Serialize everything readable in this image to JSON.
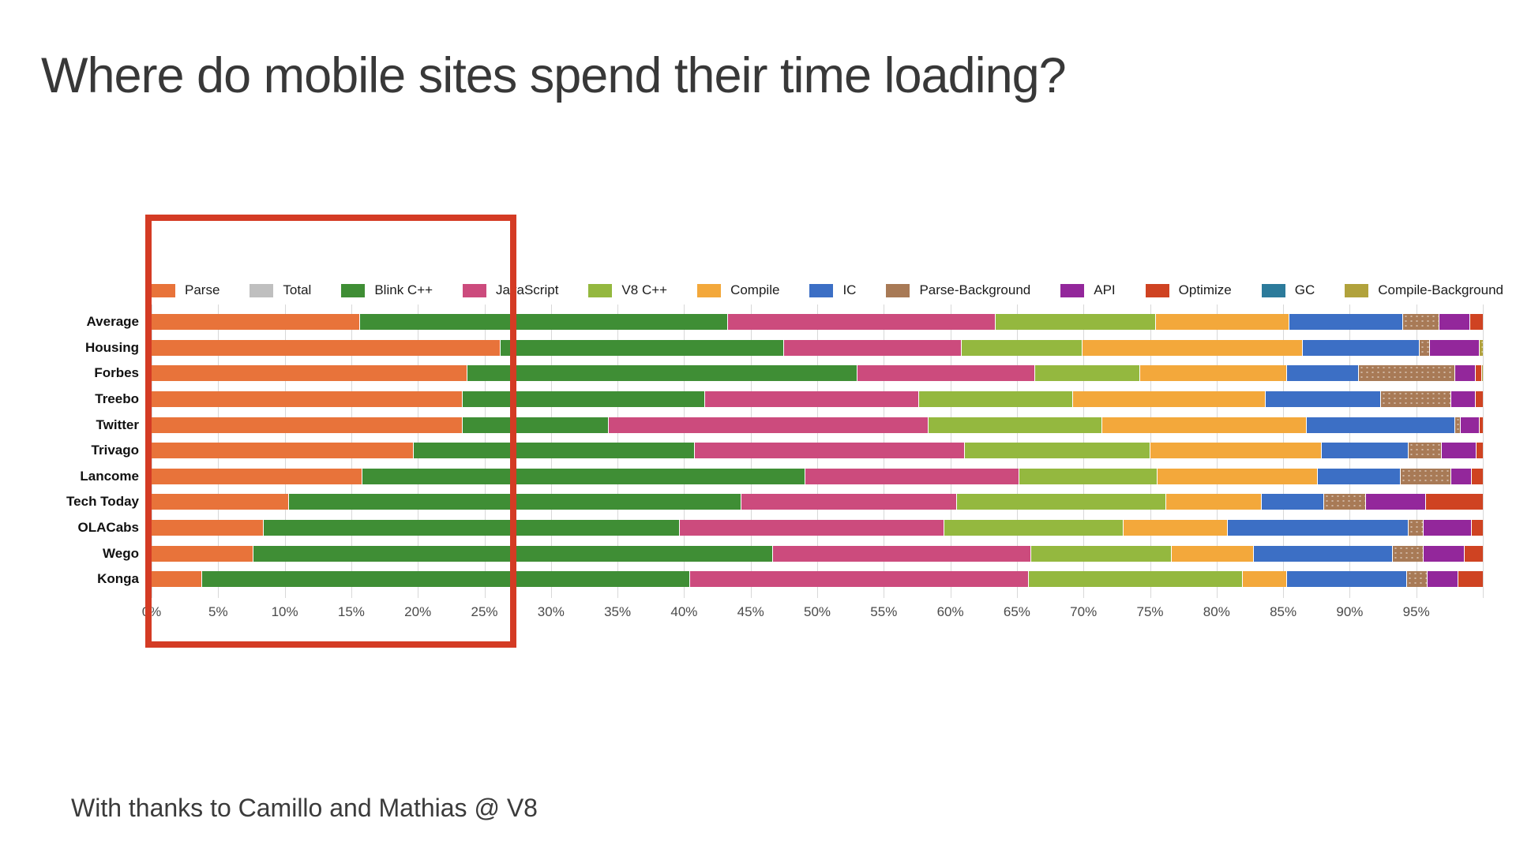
{
  "page": {
    "title": "Where do mobile sites spend their time loading?",
    "footer": "With thanks to Camillo and Mathias @ V8"
  },
  "chart_data": {
    "type": "bar",
    "orientation": "horizontal-stacked",
    "unit": "percent",
    "title": "Where do mobile sites spend their time loading?",
    "xlabel": "",
    "ylabel": "",
    "xlim": [
      0,
      100
    ],
    "tick_step_pct": 5,
    "xticks": [
      "0%",
      "5%",
      "10%",
      "15%",
      "20%",
      "25%",
      "30%",
      "35%",
      "40%",
      "45%",
      "50%",
      "55%",
      "60%",
      "65%",
      "70%",
      "75%",
      "80%",
      "85%",
      "90%",
      "95%"
    ],
    "grid": true,
    "legend_position": "top",
    "categories": [
      "Average",
      "Housing",
      "Forbes",
      "Treebo",
      "Twitter",
      "Trivago",
      "Lancome",
      "Tech Today",
      "OLACabs",
      "Wego",
      "Konga"
    ],
    "series": [
      {
        "name": "Parse",
        "color": "#e8733a",
        "texture": "solid",
        "values": [
          16,
          26.5,
          24,
          23.7,
          23.7,
          20,
          16.2,
          10.7,
          8.8,
          8,
          4.2
        ]
      },
      {
        "name": "Total",
        "color": "#bfbfbf",
        "texture": "solid",
        "values": [
          0,
          0,
          0,
          0,
          0,
          0,
          0,
          0,
          0,
          0,
          0
        ]
      },
      {
        "name": "Blink C++",
        "color": "#3f8e35",
        "texture": "solid",
        "values": [
          27.5,
          21.2,
          29.2,
          18.1,
          10.9,
          21,
          33.1,
          33.8,
          31.1,
          38.9,
          36.5
        ]
      },
      {
        "name": "JavaScript",
        "color": "#cc4b7d",
        "texture": "solid",
        "values": [
          20,
          13.3,
          13.3,
          16,
          23.9,
          20.2,
          16,
          16.1,
          19.8,
          19.3,
          25.3
        ]
      },
      {
        "name": "V8 C++",
        "color": "#94b83f",
        "texture": "solid",
        "values": [
          12,
          9,
          7.8,
          11.5,
          13,
          13.9,
          10.3,
          15.7,
          13.4,
          10.5,
          16
        ]
      },
      {
        "name": "Compile",
        "color": "#f3a83b",
        "texture": "solid",
        "values": [
          10,
          16.5,
          11,
          14.4,
          15.3,
          12.8,
          12,
          7.1,
          7.8,
          6.1,
          3.3
        ]
      },
      {
        "name": "IC",
        "color": "#3c6fc5",
        "texture": "solid",
        "values": [
          8.5,
          8.7,
          5.4,
          8.6,
          11.1,
          6.5,
          6.2,
          4.7,
          13.5,
          10.4,
          9
        ]
      },
      {
        "name": "Parse-Background",
        "color": "#a87a56",
        "texture": "dotted",
        "values": [
          2.7,
          0.8,
          7.2,
          5.3,
          0.4,
          2.5,
          3.8,
          3.1,
          1.1,
          2.3,
          1.5
        ]
      },
      {
        "name": "API",
        "color": "#93279b",
        "texture": "solid",
        "values": [
          2.3,
          3.7,
          1.5,
          1.8,
          1.4,
          2.6,
          1.5,
          4.5,
          3.6,
          3.1,
          2.3
        ]
      },
      {
        "name": "Optimize",
        "color": "#cf4322",
        "texture": "solid",
        "values": [
          1,
          0,
          0.5,
          0.6,
          0.3,
          0.5,
          0.9,
          4.3,
          0.9,
          1.4,
          1.9
        ]
      },
      {
        "name": "GC",
        "color": "#2c7b9b",
        "texture": "dotted",
        "values": [
          0,
          0,
          0,
          0,
          0,
          0,
          0,
          0,
          0,
          0,
          0
        ]
      },
      {
        "name": "Compile-Background",
        "color": "#b1a23c",
        "texture": "dotted",
        "values": [
          0,
          0.3,
          0.1,
          0,
          0,
          0,
          0,
          0,
          0,
          0,
          0
        ]
      }
    ],
    "highlight_box": {
      "color": "#d43b24",
      "x_from_pct": 0,
      "x_to_pct": 27.4,
      "meaning": "red rectangle annotation over the 0%-27% region of the chart"
    }
  }
}
